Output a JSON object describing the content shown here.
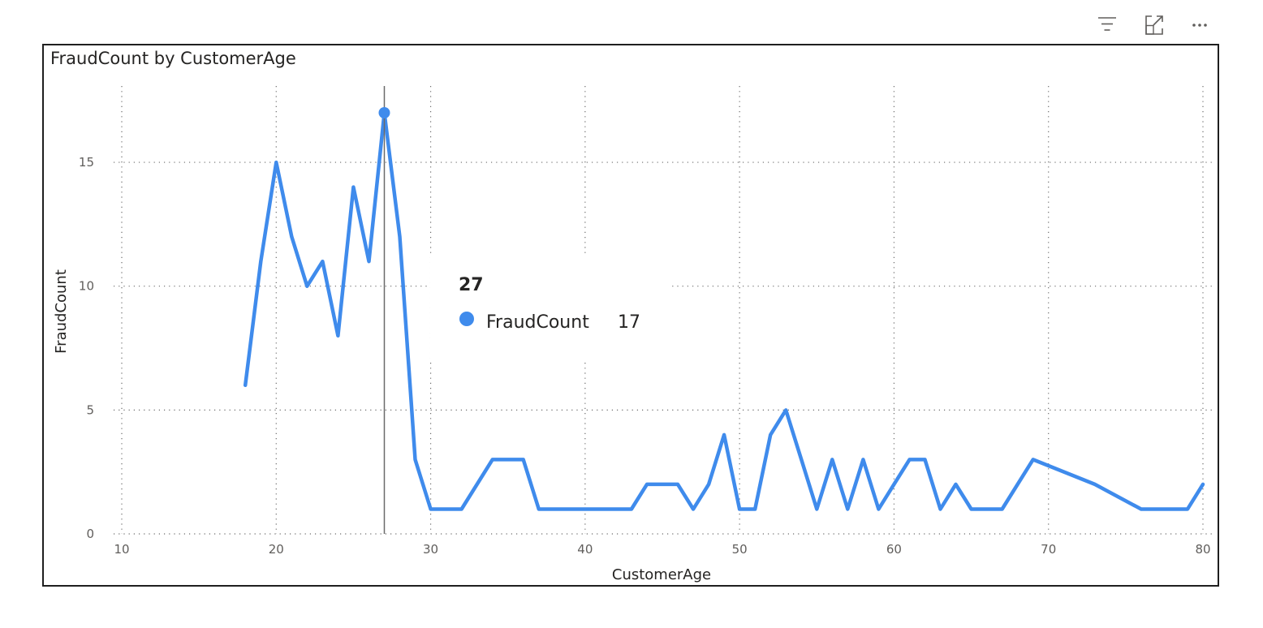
{
  "toolbar": {
    "icons": [
      "filter-icon",
      "focus-mode-icon",
      "more-options-icon"
    ]
  },
  "chart_data": {
    "type": "line",
    "title": "FraudCount by CustomerAge",
    "xlabel": "CustomerAge",
    "ylabel": "FraudCount",
    "xlim": [
      10,
      80
    ],
    "ylim": [
      0,
      17
    ],
    "xticks": [
      10,
      20,
      30,
      40,
      50,
      60,
      70,
      80
    ],
    "yticks": [
      0,
      5,
      10,
      15
    ],
    "grid": true,
    "series": [
      {
        "name": "FraudCount",
        "color": "#3f8bec",
        "x": [
          18,
          19,
          20,
          21,
          22,
          23,
          24,
          25,
          26,
          27,
          28,
          29,
          30,
          31,
          32,
          34,
          35,
          36,
          37,
          38,
          40,
          41,
          42,
          43,
          44,
          45,
          46,
          47,
          48,
          49,
          50,
          51,
          52,
          53,
          54,
          55,
          56,
          57,
          58,
          59,
          60,
          61,
          62,
          63,
          64,
          65,
          66,
          67,
          69,
          73,
          76,
          77,
          78,
          79,
          80
        ],
        "y": [
          6,
          11,
          15,
          12,
          10,
          11,
          8,
          14,
          11,
          17,
          12,
          3,
          1,
          1,
          1,
          3,
          3,
          3,
          1,
          1,
          1,
          1,
          1,
          1,
          2,
          2,
          2,
          1,
          2,
          4,
          1,
          1,
          4,
          5,
          3,
          1,
          3,
          1,
          3,
          1,
          2,
          3,
          3,
          1,
          2,
          1,
          1,
          1,
          3,
          2,
          1,
          1,
          1,
          1,
          2
        ]
      }
    ],
    "hover": {
      "x": 27,
      "title": "27",
      "series_label": "FraudCount",
      "value": "17"
    }
  }
}
